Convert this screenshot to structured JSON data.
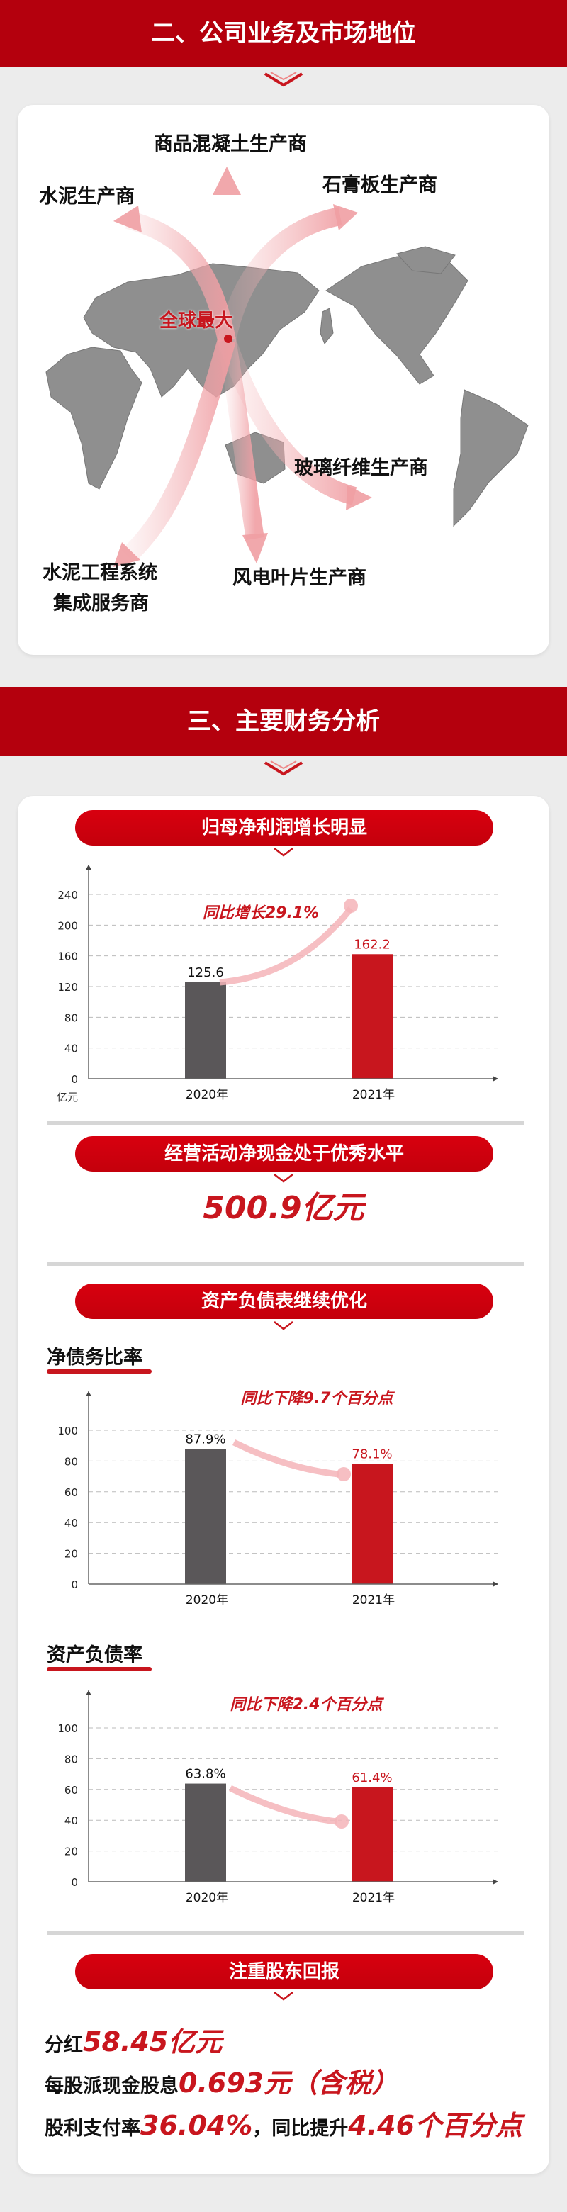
{
  "section2": {
    "title": "二、公司业务及市场地位",
    "map": {
      "center_label": "全球最大",
      "labels": [
        "商品混凝土生产商",
        "水泥生产商",
        "石膏板生产商",
        "玻璃纤维生产商",
        "水泥工程系统",
        "集成服务商",
        "风电叶片生产商"
      ]
    }
  },
  "section3": {
    "title": "三、主要财务分析",
    "net_profit": {
      "pill": "归母净利润增长明显",
      "unit": "亿元"
    },
    "cash_flow": {
      "pill": "经营活动净现金处于优秀水平",
      "value": "500.9亿元"
    },
    "balance": {
      "pill": "资产负债表继续优化",
      "net_debt_title": "净债务比率",
      "asset_liab_title": "资产负债率"
    },
    "returns": {
      "pill": "注重股东回报",
      "line1_label": "分红",
      "line1_value": "58.45亿元",
      "line2_label": "每股派现金股息",
      "line2_value": "0.693元（含税）",
      "line3_label": "股利支付率",
      "line3_value": "36.04%",
      "line3_mid": "，同比提升",
      "line3_value2": "4.46个百分点"
    }
  },
  "colors": {
    "header": "#b4000d",
    "accent": "#c8161e",
    "bar_2020": "#5a5759",
    "bar_2021": "#c8161e"
  },
  "chart_data": [
    {
      "type": "bar",
      "title": "",
      "xlabel": "",
      "ylabel": "亿元",
      "categories": [
        "2020年",
        "2021年"
      ],
      "values": [
        125.6,
        162.2
      ],
      "value_labels": [
        "125.6",
        "162.2"
      ],
      "yticks": [
        0,
        40,
        80,
        120,
        160,
        200,
        240
      ],
      "ylim": [
        0,
        240
      ],
      "grid": true,
      "annotation": "同比增长29.1%"
    },
    {
      "type": "bar",
      "title": "净债务比率",
      "xlabel": "",
      "ylabel": "",
      "categories": [
        "2020年",
        "2021年"
      ],
      "values": [
        87.9,
        78.1
      ],
      "value_labels": [
        "87.9%",
        "78.1%"
      ],
      "yticks": [
        0,
        20,
        40,
        60,
        80,
        100
      ],
      "ylim": [
        0,
        100
      ],
      "grid": true,
      "annotation": "同比下降9.7个百分点"
    },
    {
      "type": "bar",
      "title": "资产负债率",
      "xlabel": "",
      "ylabel": "",
      "categories": [
        "2020年",
        "2021年"
      ],
      "values": [
        63.8,
        61.4
      ],
      "value_labels": [
        "63.8%",
        "61.4%"
      ],
      "yticks": [
        0,
        20,
        40,
        60,
        80,
        100
      ],
      "ylim": [
        0,
        100
      ],
      "grid": true,
      "annotation": "同比下降2.4个百分点"
    }
  ]
}
